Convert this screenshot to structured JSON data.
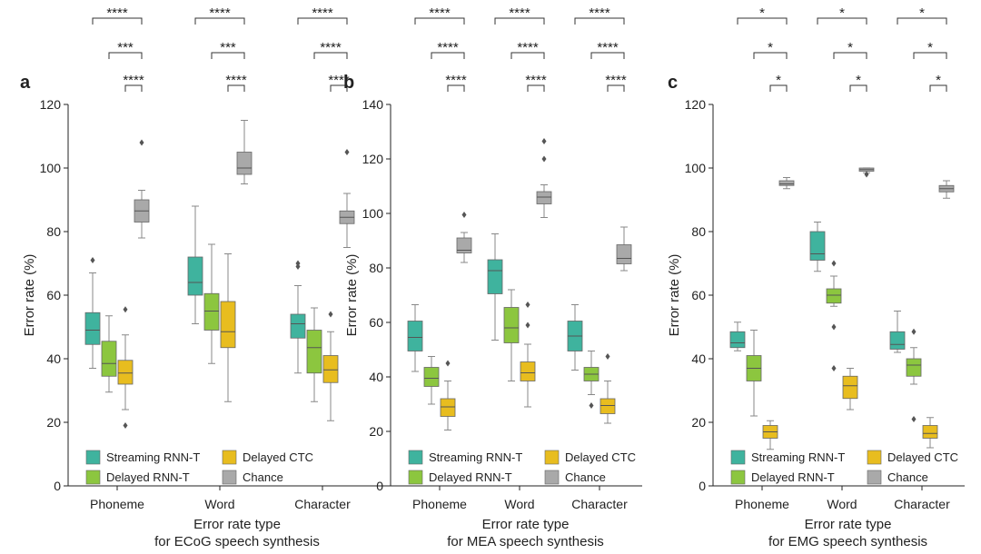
{
  "chart_data": [
    {
      "panel": "a",
      "type": "box",
      "title": "",
      "xlabel": "Error rate type\nfor ECoG speech synthesis",
      "ylabel": "Error rate (%)",
      "ylim": [
        0,
        120
      ],
      "yticks": [
        0,
        20,
        40,
        60,
        80,
        100,
        120
      ],
      "categories": [
        "Phoneme",
        "Word",
        "Character"
      ],
      "series": [
        {
          "name": "Streaming RNN-T",
          "color": "#3fb39e",
          "boxes": [
            {
              "whislo": 37,
              "q1": 44.5,
              "med": 49,
              "q3": 54.5,
              "whishi": 67,
              "fliers": [
                71
              ]
            },
            {
              "whislo": 51,
              "q1": 60,
              "med": 64,
              "q3": 72,
              "whishi": 88,
              "fliers": []
            },
            {
              "whislo": 35.5,
              "q1": 46.5,
              "med": 51,
              "q3": 54,
              "whishi": 63,
              "fliers": [
                69,
                70
              ]
            }
          ]
        },
        {
          "name": "Delayed RNN-T",
          "color": "#8cc63f",
          "boxes": [
            {
              "whislo": 29.5,
              "q1": 34.5,
              "med": 38.5,
              "q3": 45.5,
              "whishi": 53.5,
              "fliers": []
            },
            {
              "whislo": 38.5,
              "q1": 49,
              "med": 55,
              "q3": 60.5,
              "whishi": 76,
              "fliers": []
            },
            {
              "whislo": 26.5,
              "q1": 35.5,
              "med": 43.5,
              "q3": 49,
              "whishi": 56,
              "fliers": []
            }
          ]
        },
        {
          "name": "Delayed CTC",
          "color": "#e8bd1f",
          "boxes": [
            {
              "whislo": 24,
              "q1": 32,
              "med": 35.5,
              "q3": 39.5,
              "whishi": 47.5,
              "fliers": [
                19,
                55.5
              ]
            },
            {
              "whislo": 26.5,
              "q1": 43.5,
              "med": 48.5,
              "q3": 58,
              "whishi": 73,
              "fliers": []
            },
            {
              "whislo": 20.5,
              "q1": 32.5,
              "med": 36.5,
              "q3": 41,
              "whishi": 48.5,
              "fliers": [
                54
              ]
            }
          ]
        },
        {
          "name": "Chance",
          "color": "#a9a9a9",
          "boxes": [
            {
              "whislo": 78,
              "q1": 83,
              "med": 86.5,
              "q3": 90,
              "whishi": 93,
              "fliers": [
                108
              ]
            },
            {
              "whislo": 95,
              "q1": 98,
              "med": 100,
              "q3": 105,
              "whishi": 115,
              "fliers": []
            },
            {
              "whislo": 75,
              "q1": 82.5,
              "med": 84.5,
              "q3": 86.5,
              "whishi": 92,
              "fliers": [
                105
              ]
            }
          ]
        }
      ],
      "significance": [
        [
          "****",
          "****",
          "****"
        ],
        [
          "***",
          "***",
          "****"
        ],
        [
          "****",
          "****",
          "****"
        ]
      ]
    },
    {
      "panel": "b",
      "type": "box",
      "title": "",
      "xlabel": "Error rate type\nfor MEA speech synthesis",
      "ylabel": "Error rate (%)",
      "ylim": [
        0,
        140
      ],
      "yticks": [
        0,
        20,
        40,
        60,
        80,
        100,
        120,
        140
      ],
      "categories": [
        "Phoneme",
        "Word",
        "Character"
      ],
      "series": [
        {
          "name": "Streaming RNN-T",
          "color": "#3fb39e",
          "boxes": [
            {
              "whislo": 42,
              "q1": 49.5,
              "med": 54.5,
              "q3": 60.5,
              "whishi": 66.5,
              "fliers": []
            },
            {
              "whislo": 53.5,
              "q1": 70.5,
              "med": 79,
              "q3": 83,
              "whishi": 92.5,
              "fliers": []
            },
            {
              "whislo": 42.5,
              "q1": 49.5,
              "med": 55,
              "q3": 60.5,
              "whishi": 66.5,
              "fliers": []
            }
          ]
        },
        {
          "name": "Delayed RNN-T",
          "color": "#8cc63f",
          "boxes": [
            {
              "whislo": 30,
              "q1": 36.5,
              "med": 39.5,
              "q3": 43.5,
              "whishi": 47.5,
              "fliers": []
            },
            {
              "whislo": 38.5,
              "q1": 52.5,
              "med": 58,
              "q3": 65.5,
              "whishi": 72,
              "fliers": []
            },
            {
              "whislo": 33.5,
              "q1": 38.5,
              "med": 41,
              "q3": 43.5,
              "whishi": 49.5,
              "fliers": [
                29.5
              ]
            }
          ]
        },
        {
          "name": "Delayed CTC",
          "color": "#e8bd1f",
          "boxes": [
            {
              "whislo": 20.5,
              "q1": 25.5,
              "med": 29,
              "q3": 32,
              "whishi": 38.5,
              "fliers": [
                45
              ]
            },
            {
              "whislo": 29,
              "q1": 38.5,
              "med": 41.5,
              "q3": 45.5,
              "whishi": 52,
              "fliers": [
                59,
                66.5
              ]
            },
            {
              "whislo": 23,
              "q1": 26.5,
              "med": 29.5,
              "q3": 32,
              "whishi": 38.5,
              "fliers": [
                47.5
              ]
            }
          ]
        },
        {
          "name": "Chance",
          "color": "#a9a9a9",
          "boxes": [
            {
              "whislo": 82,
              "q1": 85.5,
              "med": 86.5,
              "q3": 91,
              "whishi": 93,
              "fliers": [
                99.5
              ]
            },
            {
              "whislo": 98.5,
              "q1": 103.5,
              "med": 106,
              "q3": 108,
              "whishi": 110.5,
              "fliers": [
                120,
                126.5
              ]
            },
            {
              "whislo": 79,
              "q1": 81.5,
              "med": 83.5,
              "q3": 88.5,
              "whishi": 95,
              "fliers": []
            }
          ]
        }
      ],
      "significance": [
        [
          "****",
          "****",
          "****"
        ],
        [
          "****",
          "****",
          "****"
        ],
        [
          "****",
          "****",
          "****"
        ]
      ]
    },
    {
      "panel": "c",
      "type": "box",
      "title": "",
      "xlabel": "Error rate type\nfor EMG speech synthesis",
      "ylabel": "Error rate (%)",
      "ylim": [
        0,
        120
      ],
      "yticks": [
        0,
        20,
        40,
        60,
        80,
        100,
        120
      ],
      "categories": [
        "Phoneme",
        "Word",
        "Character"
      ],
      "series": [
        {
          "name": "Streaming RNN-T",
          "color": "#3fb39e",
          "boxes": [
            {
              "whislo": 42.5,
              "q1": 43.5,
              "med": 45,
              "q3": 48.5,
              "whishi": 51.5,
              "fliers": []
            },
            {
              "whislo": 67.5,
              "q1": 71,
              "med": 73,
              "q3": 80,
              "whishi": 83,
              "fliers": []
            },
            {
              "whislo": 42,
              "q1": 43,
              "med": 44.5,
              "q3": 48.5,
              "whishi": 55,
              "fliers": []
            }
          ]
        },
        {
          "name": "Delayed RNN-T",
          "color": "#8cc63f",
          "boxes": [
            {
              "whislo": 22,
              "q1": 33,
              "med": 37,
              "q3": 41,
              "whishi": 49,
              "fliers": []
            },
            {
              "whislo": 56.5,
              "q1": 57.5,
              "med": 60,
              "q3": 62,
              "whishi": 66,
              "fliers": [
                37,
                50,
                70
              ]
            },
            {
              "whislo": 32,
              "q1": 34.5,
              "med": 38,
              "q3": 40,
              "whishi": 43.5,
              "fliers": [
                21,
                48.5
              ]
            }
          ]
        },
        {
          "name": "Delayed CTC",
          "color": "#e8bd1f",
          "boxes": [
            {
              "whislo": 11.5,
              "q1": 15,
              "med": 17,
              "q3": 19,
              "whishi": 20.5,
              "fliers": []
            },
            {
              "whislo": 24,
              "q1": 27.5,
              "med": 31.5,
              "q3": 34.5,
              "whishi": 37,
              "fliers": []
            },
            {
              "whislo": 12,
              "q1": 15,
              "med": 16.5,
              "q3": 19,
              "whishi": 21.5,
              "fliers": []
            }
          ]
        },
        {
          "name": "Chance",
          "color": "#a9a9a9",
          "boxes": [
            {
              "whislo": 93.5,
              "q1": 94.5,
              "med": 95,
              "q3": 96,
              "whishi": 97,
              "fliers": []
            },
            {
              "whislo": 98.5,
              "q1": 99,
              "med": 99.5,
              "q3": 100,
              "whishi": 100,
              "fliers": [
                98
              ]
            },
            {
              "whislo": 90.5,
              "q1": 92.5,
              "med": 93.5,
              "q3": 94.5,
              "whishi": 96,
              "fliers": []
            }
          ]
        }
      ],
      "significance": [
        [
          "*",
          "*",
          "*"
        ],
        [
          "*",
          "*",
          "*"
        ],
        [
          "*",
          "*",
          "*"
        ]
      ]
    }
  ],
  "legend": [
    {
      "label": "Streaming RNN-T",
      "color": "#3fb39e"
    },
    {
      "label": "Delayed CTC",
      "color": "#e8bd1f"
    },
    {
      "label": "Delayed RNN-T",
      "color": "#8cc63f"
    },
    {
      "label": "Chance",
      "color": "#a9a9a9"
    }
  ]
}
